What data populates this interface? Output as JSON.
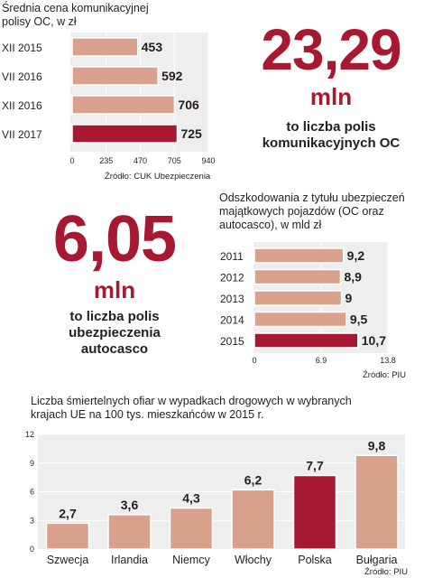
{
  "colors": {
    "highlight": "#a71930",
    "bar": "#d9a08b",
    "panel": "#eeeeee",
    "grid": "#ffffff",
    "text": "#231f20"
  },
  "chart_data": [
    {
      "type": "bar",
      "orientation": "horizontal",
      "title": "Średnia cena komunikacyjnej polisy OC, w zł",
      "title_lines": [
        "Średnia cena komunikacyjnej",
        "polisy OC, w zł"
      ],
      "categories": [
        "XII 2015",
        "VII 2016",
        "XII 2016",
        "VII 2017"
      ],
      "values": [
        453,
        592,
        706,
        725
      ],
      "value_labels": [
        "453",
        "592",
        "706",
        "725"
      ],
      "highlight_index": 3,
      "xlim": [
        0,
        940
      ],
      "x_ticks": [
        "0",
        "235",
        "470",
        "705",
        "940"
      ],
      "source": "Źródło: CUK Ubezpieczenia",
      "grid": true
    },
    {
      "type": "bar",
      "orientation": "horizontal",
      "title": "Odszkodowania z tytułu ubezpieczeń majątkowych pojazdów (OC oraz autocasco), w mld zł",
      "title_lines": [
        "Odszkodowania z tytułu ubezpieczeń",
        "majątkowych pojazdów (OC oraz",
        "autocasco), w mld zł"
      ],
      "categories": [
        "2011",
        "2012",
        "2013",
        "2014",
        "2015"
      ],
      "values": [
        9.2,
        8.9,
        9,
        9.5,
        10.7
      ],
      "value_labels": [
        "9,2",
        "8,9",
        "9",
        "9,5",
        "10,7"
      ],
      "highlight_index": 4,
      "xlim": [
        0,
        13.8
      ],
      "x_ticks": [
        "0",
        "6.9",
        "13.8"
      ],
      "source": "Źródło: PIU",
      "grid": true
    },
    {
      "type": "bar",
      "orientation": "vertical",
      "title": "Liczba śmiertelnych ofiar w wypadkach drogowych w wybranych krajach UE na 100 tys. mieszkańców w 2015 r.",
      "title_lines": [
        "Liczba śmiertelnych ofiar w wypadkach drogowych w wybranych",
        "krajach UE na 100 tys. mieszkańców w 2015 r."
      ],
      "categories": [
        "Szwecja",
        "Irlandia",
        "Niemcy",
        "Włochy",
        "Polska",
        "Bułgaria"
      ],
      "values": [
        2.7,
        3.6,
        4.3,
        6.2,
        7.7,
        9.8
      ],
      "value_labels": [
        "2,7",
        "3,6",
        "4,3",
        "6,2",
        "7,7",
        "9,8"
      ],
      "highlight_index": 4,
      "ylim": [
        0,
        12
      ],
      "y_ticks": [
        "0",
        "3",
        "6",
        "9",
        "12"
      ],
      "source": "Źródło: PIU",
      "grid": true
    }
  ],
  "stats": [
    {
      "number": "23,29",
      "unit": "mln",
      "caption_lines": [
        "to liczba polis",
        "komunikacyjnych OC"
      ]
    },
    {
      "number": "6,05",
      "unit": "mln",
      "caption_lines": [
        "to liczba polis",
        "ubezpieczenia",
        "autocasco"
      ]
    }
  ]
}
